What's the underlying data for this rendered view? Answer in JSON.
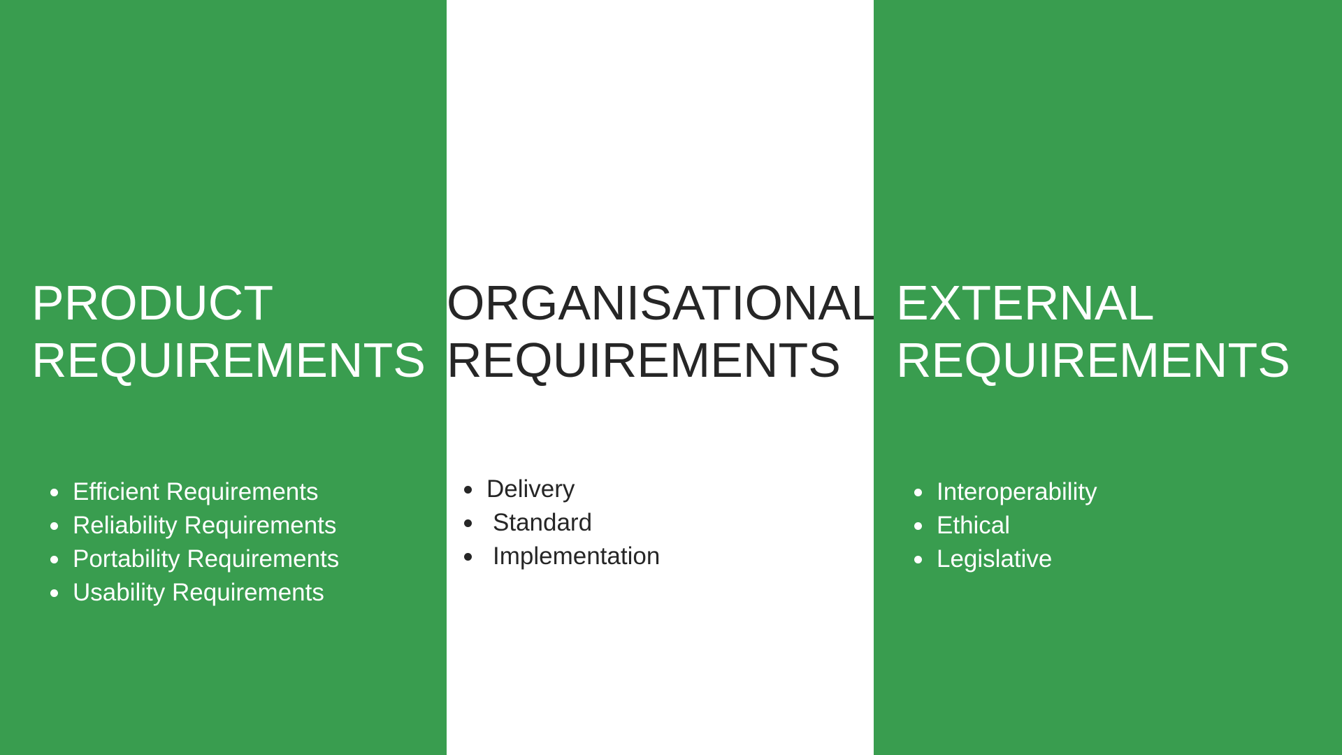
{
  "colors": {
    "green_panel": "#399d4f",
    "white_panel": "#ffffff",
    "dark_text": "#262626",
    "light_text": "#ffffff"
  },
  "columns": [
    {
      "heading_line1": "PRODUCT",
      "heading_line2": "REQUIREMENTS",
      "items": [
        "Efficient Requirements",
        "Reliability Requirements",
        "Portability Requirements",
        "Usability Requirements"
      ]
    },
    {
      "heading_line1": "ORGANISATIONAL",
      "heading_line2": "REQUIREMENTS",
      "items": [
        "Delivery",
        "Standard",
        "Implementation"
      ]
    },
    {
      "heading_line1": "EXTERNAL",
      "heading_line2": "REQUIREMENTS",
      "items": [
        "Interoperability",
        "Ethical",
        "Legislative"
      ]
    }
  ]
}
